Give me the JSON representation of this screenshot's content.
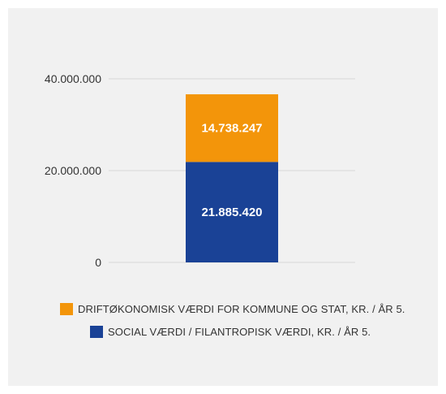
{
  "chart_data": {
    "type": "bar",
    "stacked": true,
    "categories": [
      ""
    ],
    "series": [
      {
        "name": "SOCIAL VÆRDI / FILANTROPISK VÆRDI, KR. / ÅR 5.",
        "values": [
          21885420
        ],
        "label": "21.885.420",
        "color": "#1a4296"
      },
      {
        "name": "DRIFTØKONOMISK VÆRDI FOR KOMMUNE OG STAT, KR. / ÅR 5.",
        "values": [
          14738247
        ],
        "label": "14.738.247",
        "color": "#f3950a"
      }
    ],
    "ylim": [
      0,
      40000000
    ],
    "y_ticks": [
      {
        "value": 0,
        "label": "0"
      },
      {
        "value": 20000000,
        "label": "20.000.000"
      },
      {
        "value": 40000000,
        "label": "40.000.000"
      }
    ],
    "grid": true,
    "legend_position": "bottom",
    "legend_order": [
      1,
      0
    ],
    "title": "",
    "xlabel": "",
    "ylabel": ""
  },
  "colors": {
    "panel_background": "#f1f1f1",
    "gridline": "#d6d6d6"
  }
}
